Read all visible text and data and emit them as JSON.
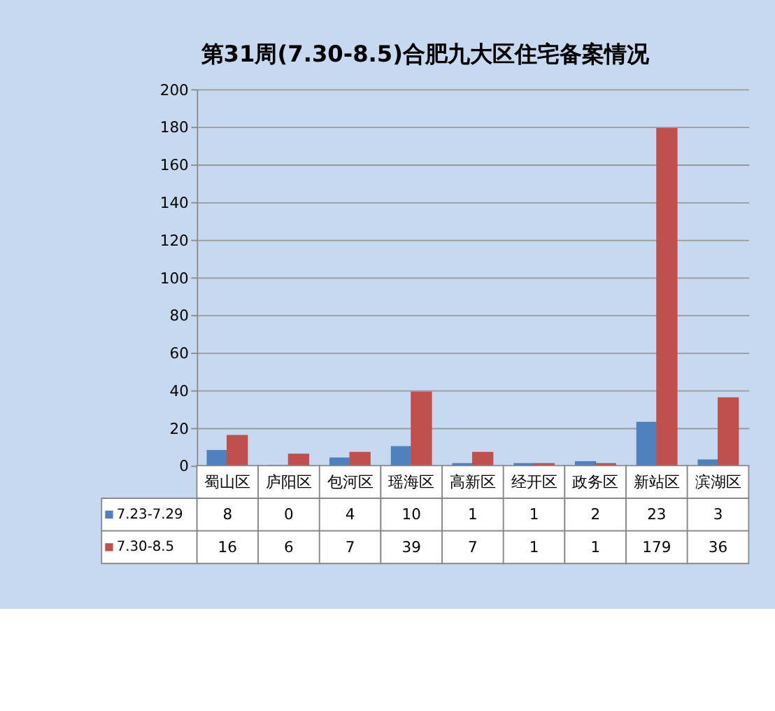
{
  "chart_data": {
    "type": "bar",
    "title": "第31周(7.30-8.5)合肥九大区住宅备案情况",
    "categories": [
      "蜀山区",
      "庐阳区",
      "包河区",
      "瑶海区",
      "高新区",
      "经开区",
      "政务区",
      "新站区",
      "滨湖区"
    ],
    "series": [
      {
        "name": "7.23-7.29",
        "color": "#4f81bd",
        "values": [
          8,
          0,
          4,
          10,
          1,
          1,
          2,
          23,
          3
        ]
      },
      {
        "name": "7.30-8.5",
        "color": "#c0504d",
        "values": [
          16,
          6,
          7,
          39,
          7,
          1,
          1,
          179,
          36
        ]
      }
    ],
    "ylim": [
      0,
      200
    ],
    "yticks": [
      0,
      20,
      40,
      60,
      80,
      100,
      120,
      140,
      160,
      180,
      200
    ],
    "grid": "y",
    "data_labels": true,
    "legend": "bottom"
  }
}
